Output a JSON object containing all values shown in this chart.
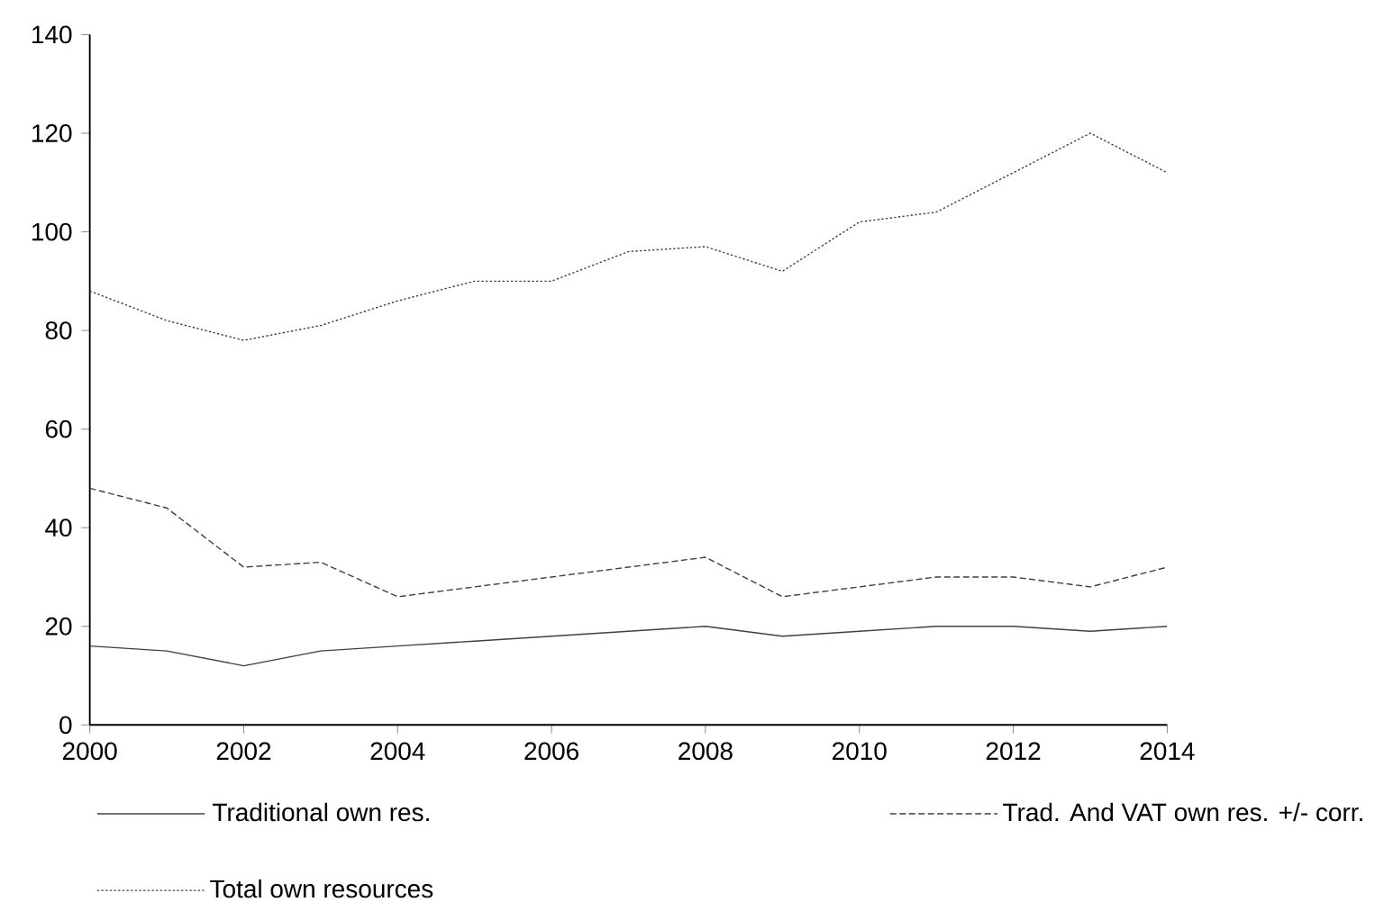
{
  "chart_data": {
    "type": "line",
    "x": [
      2000,
      2001,
      2002,
      2003,
      2004,
      2005,
      2006,
      2007,
      2008,
      2009,
      2010,
      2011,
      2012,
      2013,
      2014
    ],
    "series": [
      {
        "name": "Traditional own res.",
        "color": "#404040",
        "line_style": "solid",
        "values": [
          16,
          15,
          12,
          15,
          16,
          17,
          18,
          19,
          20,
          18,
          19,
          20,
          20,
          19,
          20
        ]
      },
      {
        "name": "Trad. And VAT own res. +/- corr.",
        "color": "#404040",
        "line_style": "dashed",
        "values": [
          48,
          44,
          32,
          33,
          26,
          28,
          30,
          32,
          34,
          26,
          28,
          30,
          30,
          28,
          32
        ]
      },
      {
        "name": "Total own resources",
        "color": "#404040",
        "line_style": "dotted",
        "values": [
          88,
          82,
          78,
          81,
          86,
          90,
          90,
          96,
          97,
          92,
          102,
          104,
          112,
          120,
          112
        ]
      }
    ],
    "xlim": [
      2000,
      2014
    ],
    "xticks": [
      2000,
      2002,
      2004,
      2006,
      2008,
      2010,
      2012,
      2014
    ],
    "ylim": [
      0,
      140
    ],
    "yticks": [
      0,
      20,
      40,
      60,
      80,
      100,
      120,
      140
    ],
    "grid": false,
    "legend": "bottom",
    "marker": "none"
  }
}
